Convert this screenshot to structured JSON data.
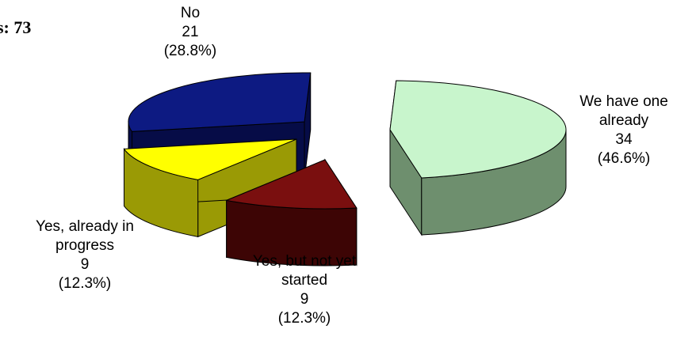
{
  "header": {
    "respondents_label": "s: 73"
  },
  "chart_data": {
    "type": "pie",
    "title": "",
    "respondents": 73,
    "slices": [
      {
        "name": "We have one already",
        "count": 34,
        "percent": "46.6%",
        "top_color": "#c8f5cc",
        "side_color": "#6e8f6e",
        "label_lines": [
          "We have one",
          "already",
          "34",
          "(46.6%)"
        ]
      },
      {
        "name": "No",
        "count": 21,
        "percent": "28.8%",
        "top_color": "#0d1a82",
        "side_color": "#060c47",
        "label_lines": [
          "No",
          "21",
          "(28.8%)"
        ]
      },
      {
        "name": "Yes, already in progress",
        "count": 9,
        "percent": "12.3%",
        "top_color": "#ffff00",
        "side_color": "#9a9a05",
        "label_lines": [
          "Yes, already in",
          "progress",
          "9",
          "(12.3%)"
        ]
      },
      {
        "name": "Yes, but not yet started",
        "count": 9,
        "percent": "12.3%",
        "top_color": "#7a0f0f",
        "side_color": "#3d0505",
        "label_lines": [
          "Yes, but not yet",
          "started",
          "9",
          "(12.3%)"
        ]
      }
    ]
  }
}
